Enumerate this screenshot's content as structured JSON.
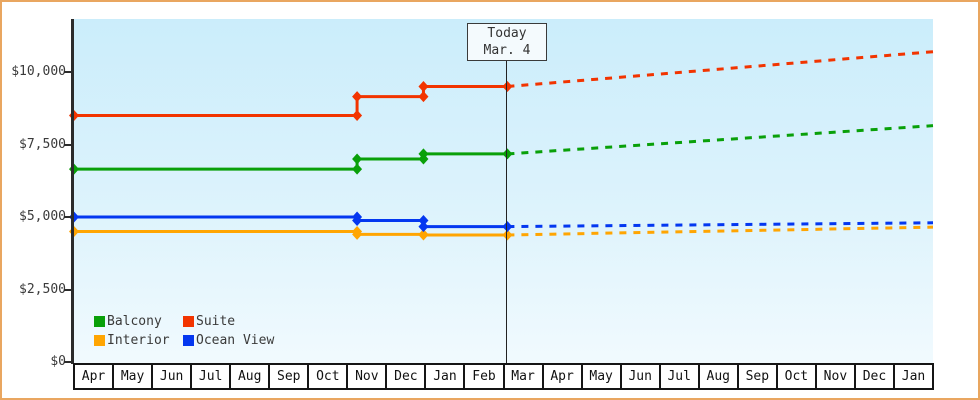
{
  "chart_data": {
    "type": "line",
    "title": "",
    "x_axis": {
      "tick_labels": [
        "Apr",
        "May",
        "Jun",
        "Jul",
        "Aug",
        "Sep",
        "Oct",
        "Nov",
        "Dec",
        "Jan",
        "Feb",
        "Mar",
        "Apr",
        "May",
        "Jun",
        "Jul",
        "Aug",
        "Sep",
        "Oct",
        "Nov",
        "Dec",
        "Jan"
      ],
      "total_months": 22
    },
    "y_axis": {
      "ticks": [
        {
          "label": "$0",
          "value": 0
        },
        {
          "label": "$2,500",
          "value": 2500
        },
        {
          "label": "$5,000",
          "value": 5000
        },
        {
          "label": "$7,500",
          "value": 7500
        },
        {
          "label": "$10,000",
          "value": 10000
        }
      ],
      "range": [
        0,
        11860
      ],
      "grid": false
    },
    "today_marker": {
      "line1": "Today",
      "line2": "Mar. 4",
      "x_month": 11.1
    },
    "series": [
      {
        "name": "Suite",
        "color": "#f23400",
        "history_steps": [
          {
            "x_month": 0,
            "price": 8500
          },
          {
            "x_month": 7.25,
            "price": 9150
          },
          {
            "x_month": 8.95,
            "price": 9500
          }
        ],
        "today_price": 9500,
        "forecast_end_price": 10700
      },
      {
        "name": "Balcony",
        "color": "#09a009",
        "history_steps": [
          {
            "x_month": 0,
            "price": 6650
          },
          {
            "x_month": 7.25,
            "price": 7000
          },
          {
            "x_month": 8.95,
            "price": 7175
          }
        ],
        "today_price": 7175,
        "forecast_end_price": 8150
      },
      {
        "name": "Interior",
        "color": "#ffa502",
        "history_steps": [
          {
            "x_month": 0,
            "price": 4500
          },
          {
            "x_month": 7.25,
            "price": 4400
          },
          {
            "x_month": 8.95,
            "price": 4380
          }
        ],
        "today_price": 4380,
        "forecast_end_price": 4650
      },
      {
        "name": "Ocean View",
        "color": "#0437f0",
        "history_steps": [
          {
            "x_month": 0,
            "price": 5000
          },
          {
            "x_month": 7.25,
            "price": 4880
          },
          {
            "x_month": 8.95,
            "price": 4670
          }
        ],
        "today_price": 4670,
        "forecast_end_price": 4800
      }
    ],
    "legend": {
      "position": "bottom-left-inside-plot",
      "items": [
        {
          "label": "Balcony",
          "color": "#09a009"
        },
        {
          "label": "Suite",
          "color": "#f23400"
        },
        {
          "label": "Interior",
          "color": "#ffa502"
        },
        {
          "label": "Ocean View",
          "color": "#0437f0"
        }
      ]
    }
  }
}
